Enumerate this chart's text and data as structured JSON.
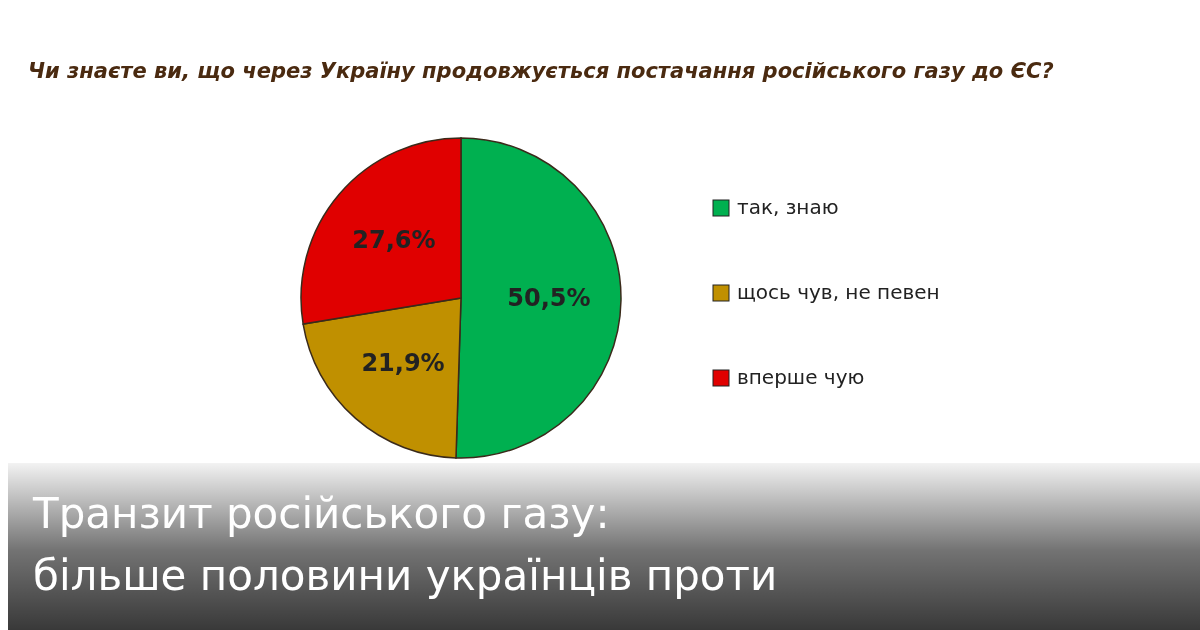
{
  "chart_data": {
    "type": "pie",
    "title": "Чи знаєте ви, що через Україну продовжується постачання російського газу до ЄС?",
    "categories": [
      "так, знаю",
      "щось чув, не певен",
      "вперше чую"
    ],
    "values": [
      50.5,
      21.9,
      27.6
    ],
    "colors": [
      "#00b050",
      "#c09000",
      "#e00000"
    ],
    "value_labels": [
      "50,5%",
      "21,9%",
      "27,6%"
    ],
    "legend": "right",
    "annotations": [
      "Транзит російського газу:",
      "більше половини українців проти"
    ]
  }
}
